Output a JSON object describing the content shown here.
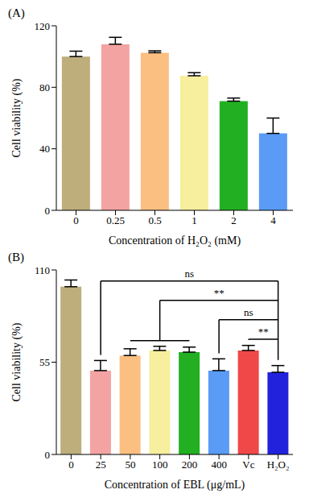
{
  "chart_data": [
    {
      "type": "bar",
      "title": "(A)",
      "x_label": "Concentration of H₂O₂ (mM)",
      "y_label": "Cell viability (%)",
      "categories": [
        "0",
        "0.25",
        "0.5",
        "1",
        "2",
        "4"
      ],
      "values": [
        100,
        108,
        102.5,
        87.5,
        71,
        50
      ],
      "errors": [
        3.5,
        4.5,
        1.2,
        2,
        2,
        10
      ],
      "colors": [
        "#bdae7c",
        "#f4a3a3",
        "#fbbf82",
        "#f7ee9e",
        "#22b022",
        "#5a9bf5"
      ],
      "ylim": [
        0,
        120
      ],
      "yticks": [
        0,
        40,
        80,
        120
      ],
      "grid": false
    },
    {
      "type": "bar",
      "title": "(B)",
      "x_label": "Concentration of EBL (μg/mL)",
      "y_label": "Cell viability (%)",
      "categories": [
        "0",
        "25",
        "50",
        "100",
        "200",
        "400",
        "Vc",
        "H₂O₂"
      ],
      "values": [
        100,
        50,
        59,
        62,
        61,
        50,
        62,
        49
      ],
      "errors": [
        4,
        6,
        4,
        2.5,
        3,
        7,
        3,
        4
      ],
      "colors": [
        "#bdae7c",
        "#f4a3a3",
        "#fbbf82",
        "#f7ee9e",
        "#22b022",
        "#5a9bf5",
        "#f04848",
        "#2222dd"
      ],
      "ylim": [
        0,
        110
      ],
      "yticks": [
        0,
        55,
        110
      ],
      "grid": false,
      "annotations": [
        {
          "text": "ns",
          "from": "25",
          "to": "H₂O₂"
        },
        {
          "text": "**",
          "from": [
            "50",
            "100",
            "200"
          ],
          "to": "H₂O₂"
        },
        {
          "text": "ns",
          "from": "400",
          "to": "H₂O₂"
        },
        {
          "text": "**",
          "from": "Vc",
          "to": "H₂O₂"
        }
      ]
    }
  ]
}
